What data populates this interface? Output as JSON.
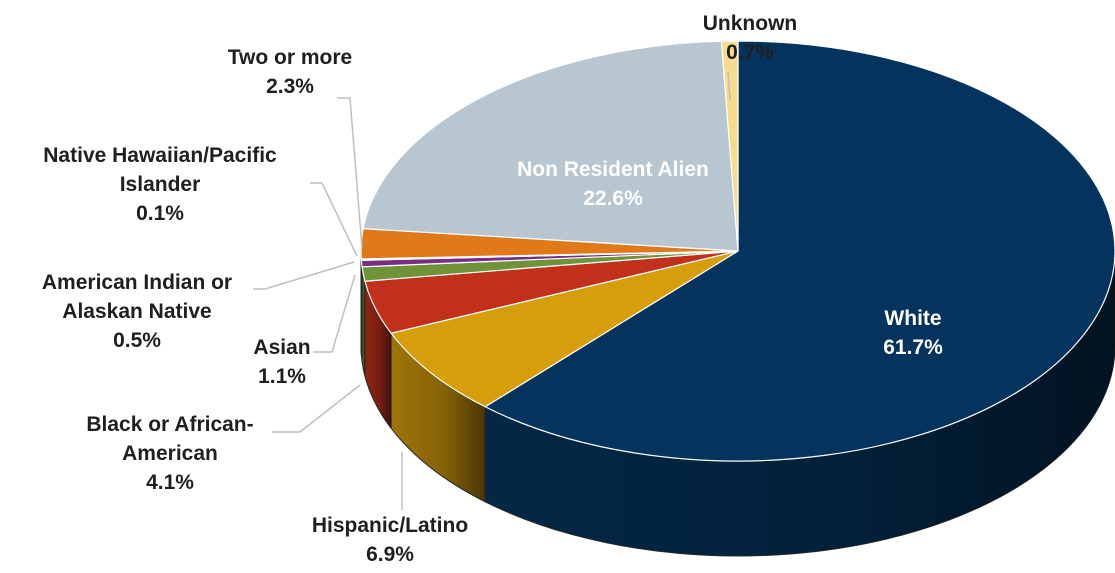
{
  "chart_data": {
    "type": "pie",
    "title": "",
    "slices": [
      {
        "label": "White",
        "value": 61.7,
        "value_label": "61.7%",
        "color": "#04345e"
      },
      {
        "label": "Hispanic/Latino",
        "value": 6.9,
        "value_label": "6.9%",
        "color": "#d69e0b"
      },
      {
        "label": "Black or African-American",
        "value": 4.1,
        "value_label": "4.1%",
        "color": "#c0301b"
      },
      {
        "label": "Asian",
        "value": 1.1,
        "value_label": "1.1%",
        "color": "#6f9339"
      },
      {
        "label": "American Indian or Alaskan Native",
        "value": 0.5,
        "value_label": "0.5%",
        "color": "#7a2d86"
      },
      {
        "label": "Native Hawaiian/Pacific Islander",
        "value": 0.1,
        "value_label": "0.1%",
        "color": "#33215a"
      },
      {
        "label": "Two or more",
        "value": 2.3,
        "value_label": "2.3%",
        "color": "#e07a18"
      },
      {
        "label": "Non Resident Alien",
        "value": 22.6,
        "value_label": "22.6%",
        "color": "#b8c6d2"
      },
      {
        "label": "Unknown",
        "value": 0.7,
        "value_label": "0.7%",
        "color": "#f7dc8c"
      }
    ],
    "style": "3d-pie",
    "legend": "none"
  }
}
